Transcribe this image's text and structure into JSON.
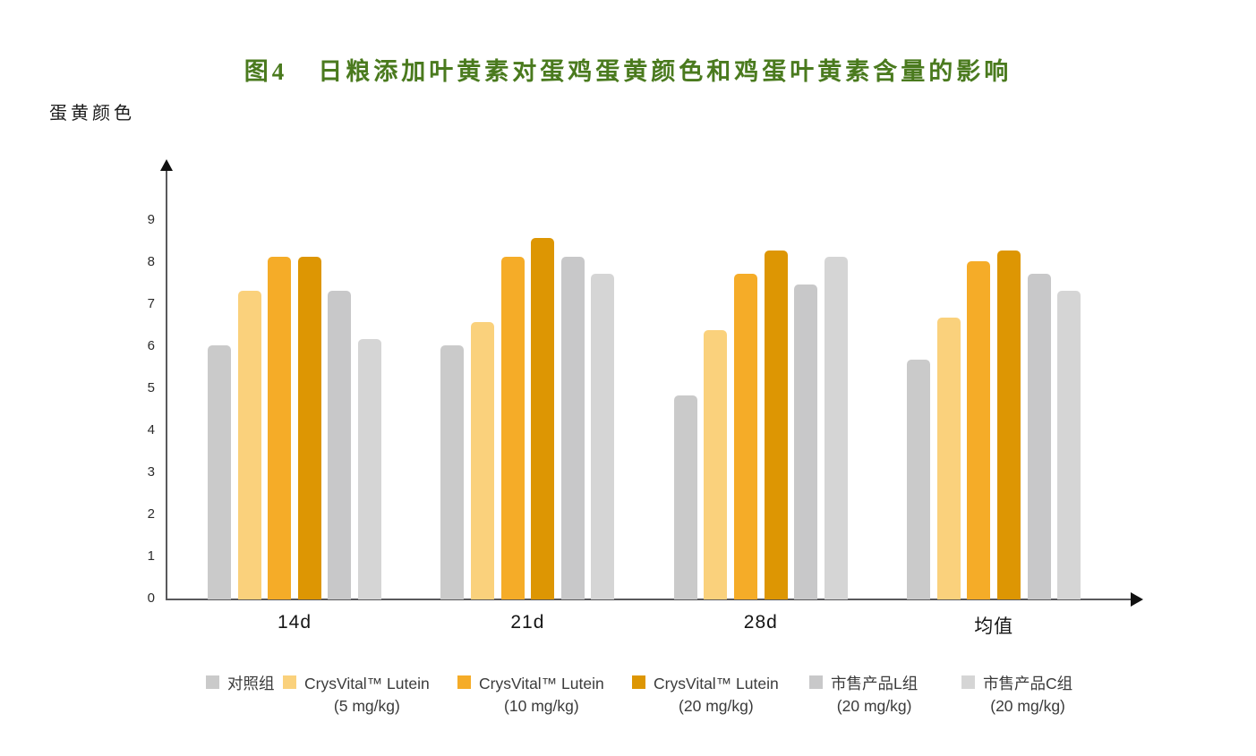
{
  "figure": {
    "title_prefix": "图4",
    "title_main": "日粮添加叶黄素对蛋鸡蛋黄颜色和鸡蛋叶黄素含量的影响",
    "title_color": "#4a7a1e",
    "y_axis_title": "蛋黄颜色"
  },
  "chart_data": {
    "type": "bar",
    "title": "图4 日粮添加叶黄素对蛋鸡蛋黄颜色和鸡蛋叶黄素含量的影响",
    "ylabel": "蛋黄颜色",
    "xlabel": "",
    "categories": [
      "14d",
      "21d",
      "28d",
      "均值"
    ],
    "ylim": [
      0,
      9
    ],
    "yticks": [
      0,
      1,
      2,
      3,
      4,
      5,
      6,
      7,
      8,
      9
    ],
    "grid": false,
    "legend_position": "bottom",
    "series": [
      {
        "name": "对照组",
        "dose": "",
        "color": "#CACACA",
        "values": [
          6.05,
          6.05,
          4.85,
          5.7
        ]
      },
      {
        "name": "CrysVital™ Lutein",
        "dose": "(5 mg/kg)",
        "color": "#FAD17C",
        "values": [
          7.35,
          6.6,
          6.4,
          6.7
        ]
      },
      {
        "name": "CrysVital™ Lutein",
        "dose": "(10 mg/kg)",
        "color": "#F5AC28",
        "values": [
          8.15,
          8.15,
          7.75,
          8.05
        ]
      },
      {
        "name": "CrysVital™ Lutein",
        "dose": "(20 mg/kg)",
        "color": "#DD9603",
        "values": [
          8.15,
          8.6,
          8.3,
          8.3
        ]
      },
      {
        "name": "市售产品L组",
        "dose": "(20 mg/kg)",
        "color": "#C8C8C9",
        "values": [
          7.35,
          8.15,
          7.5,
          7.75
        ]
      },
      {
        "name": "市售产品C组",
        "dose": "(20 mg/kg)",
        "color": "#D5D5D5",
        "values": [
          6.2,
          7.75,
          8.15,
          7.35
        ]
      }
    ]
  }
}
